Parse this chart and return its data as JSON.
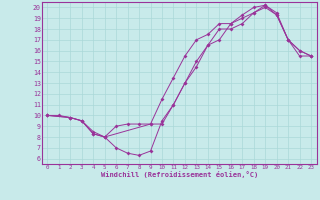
{
  "xlabel": "Windchill (Refroidissement éolien,°C)",
  "xlim": [
    -0.5,
    23.5
  ],
  "ylim": [
    5.5,
    20.5
  ],
  "xticks": [
    0,
    1,
    2,
    3,
    4,
    5,
    6,
    7,
    8,
    9,
    10,
    11,
    12,
    13,
    14,
    15,
    16,
    17,
    18,
    19,
    20,
    21,
    22,
    23
  ],
  "yticks": [
    6,
    7,
    8,
    9,
    10,
    11,
    12,
    13,
    14,
    15,
    16,
    17,
    18,
    19,
    20
  ],
  "line_color": "#993399",
  "bg_color": "#c8eaea",
  "grid_color": "#aad8d8",
  "line1_x": [
    0,
    1,
    2,
    3,
    4,
    5,
    6,
    7,
    8,
    9,
    10,
    11,
    12,
    13,
    14,
    15,
    16,
    17,
    18,
    19,
    20,
    21,
    22,
    23
  ],
  "line1_y": [
    10,
    10,
    9.8,
    9.5,
    8.5,
    8.0,
    7.0,
    6.5,
    6.3,
    6.7,
    9.5,
    11.0,
    13.0,
    15.0,
    16.5,
    18.0,
    18.0,
    18.5,
    19.5,
    20.0,
    19.3,
    17.0,
    15.5,
    15.5
  ],
  "line2_x": [
    0,
    2,
    3,
    4,
    5,
    9,
    10,
    11,
    12,
    13,
    14,
    15,
    16,
    17,
    18,
    19,
    20,
    21,
    22,
    23
  ],
  "line2_y": [
    10,
    9.8,
    9.5,
    8.3,
    8.0,
    9.2,
    11.5,
    13.5,
    15.5,
    17.0,
    17.5,
    18.5,
    18.5,
    19.3,
    20.0,
    20.2,
    19.5,
    17.0,
    16.0,
    15.5
  ],
  "line3_x": [
    0,
    2,
    3,
    4,
    5,
    6,
    7,
    8,
    9,
    10,
    11,
    12,
    13,
    14,
    15,
    16,
    17,
    18,
    19,
    20,
    21,
    22,
    23
  ],
  "line3_y": [
    10,
    9.8,
    9.5,
    8.3,
    8.0,
    9.0,
    9.2,
    9.2,
    9.2,
    9.2,
    11.0,
    13.0,
    14.5,
    16.5,
    17.0,
    18.5,
    19.0,
    19.5,
    20.2,
    19.3,
    17.0,
    16.0,
    15.5
  ]
}
